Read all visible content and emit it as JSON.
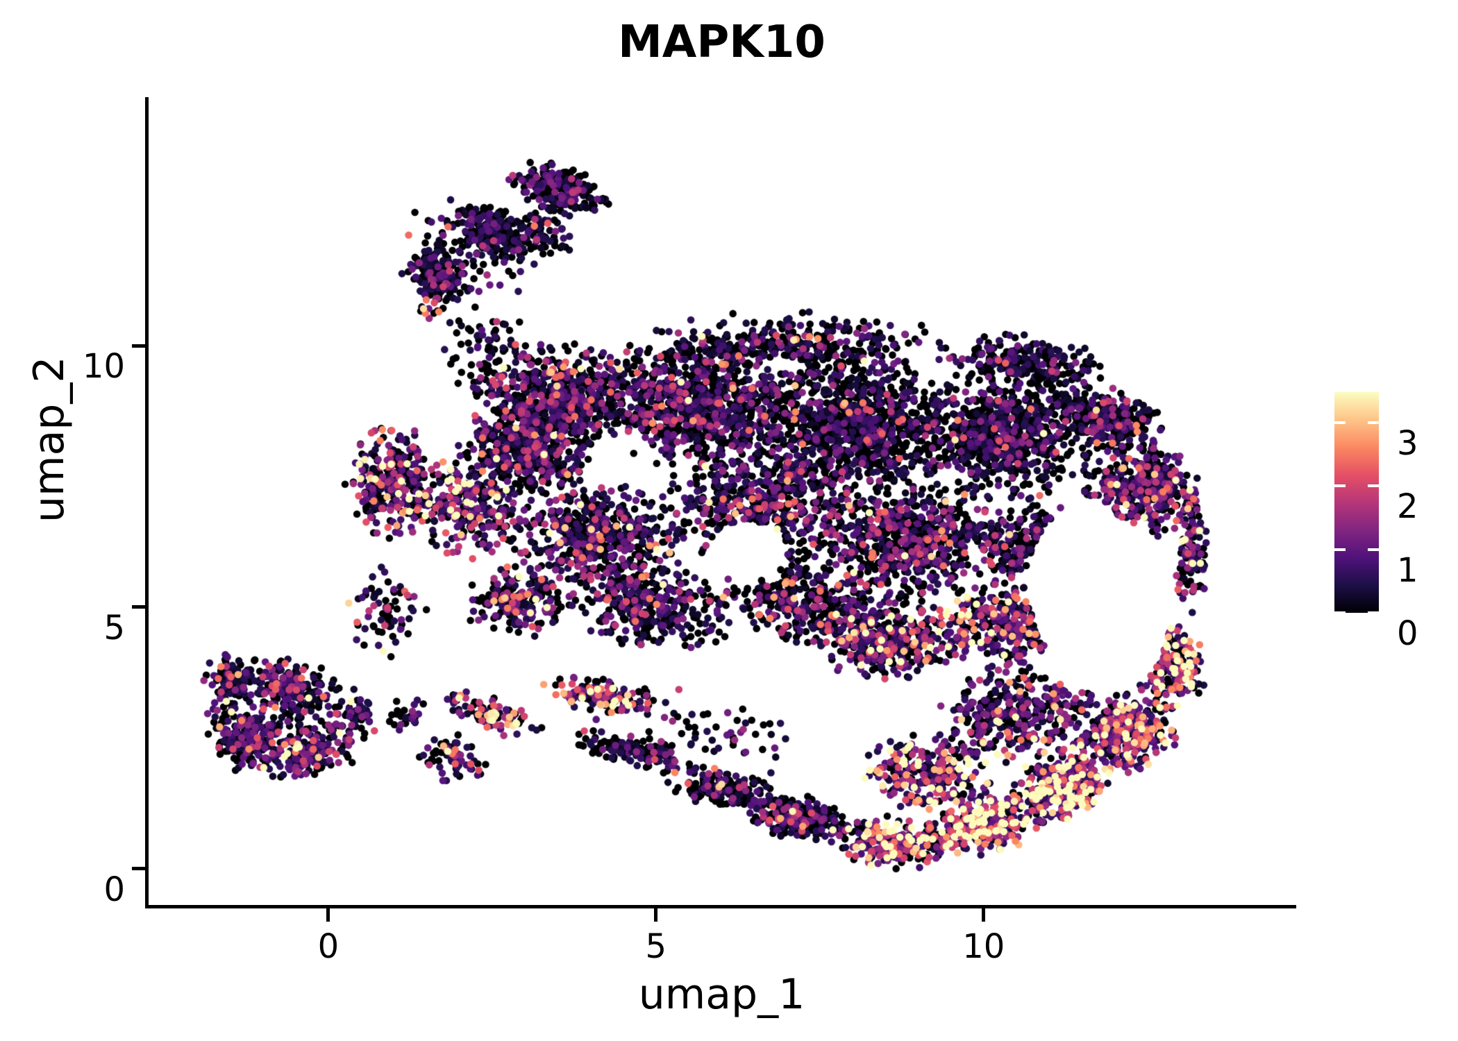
{
  "title": "MAPK10",
  "axes": {
    "x_label": "umap_1",
    "y_label": "umap_2",
    "x_ticks": [
      0,
      5,
      10
    ],
    "y_ticks": [
      0,
      5,
      10
    ]
  },
  "colorbar": {
    "ticks": [
      0,
      1,
      2,
      3
    ],
    "vmin": 0,
    "vmax": 3.48
  },
  "chart_data": {
    "type": "scatter",
    "title": "MAPK10",
    "xlabel": "umap_1",
    "ylabel": "umap_2",
    "x_range": [
      -2.764,
      14.77
    ],
    "y_range": [
      -0.72,
      14.75
    ],
    "point_radius_px": 5.3,
    "grid": false,
    "legend": "colorbar-right",
    "colormap": {
      "name": "magma",
      "stops": [
        [
          0.0,
          "#000004"
        ],
        [
          0.125,
          "#1c0f47"
        ],
        [
          0.25,
          "#50127b"
        ],
        [
          0.375,
          "#822581"
        ],
        [
          0.5,
          "#b63679"
        ],
        [
          0.625,
          "#e55064"
        ],
        [
          0.75,
          "#fb8861"
        ],
        [
          0.875,
          "#fec488"
        ],
        [
          1.0,
          "#fcfdbf"
        ]
      ]
    },
    "expression_profiles": {
      "low": [
        0.54,
        0.5
      ],
      "mid": [
        0.44,
        0.7
      ],
      "midhigh": [
        0.33,
        1.05
      ],
      "high": [
        0.25,
        1.45
      ],
      "vhigh": [
        0.17,
        1.85
      ]
    },
    "value_floor": 0.18,
    "seed": 20240613,
    "clusters": [
      [
        -1.3,
        2.5,
        0.55,
        0.7,
        0,
        150,
        "mid"
      ],
      [
        -0.6,
        3.5,
        0.8,
        0.55,
        -20,
        170,
        "mid"
      ],
      [
        -0.35,
        2.2,
        0.8,
        0.55,
        10,
        160,
        "midhigh"
      ],
      [
        -1.5,
        3.6,
        0.45,
        0.5,
        0,
        90,
        "mid"
      ],
      [
        -0.7,
        2.9,
        1.35,
        1.15,
        0,
        140,
        "mid"
      ],
      [
        0.35,
        2.9,
        0.45,
        0.55,
        0,
        60,
        "mid"
      ],
      [
        3.55,
        13.0,
        0.85,
        0.45,
        -22,
        260,
        "low"
      ],
      [
        2.55,
        12.15,
        0.75,
        0.5,
        -35,
        210,
        "low"
      ],
      [
        1.65,
        11.35,
        0.6,
        0.45,
        -35,
        170,
        "low"
      ],
      [
        1.55,
        10.78,
        0.22,
        0.28,
        0,
        16,
        "vhigh"
      ],
      [
        2.2,
        11.9,
        1.3,
        1.0,
        -35,
        80,
        "low"
      ],
      [
        3.3,
        12.15,
        0.5,
        0.6,
        0,
        60,
        "low"
      ],
      [
        2.4,
        9.9,
        0.9,
        0.85,
        60,
        70,
        "low"
      ],
      [
        3.5,
        9.0,
        1.4,
        1.05,
        0,
        600,
        "mid"
      ],
      [
        3.0,
        8.0,
        1.1,
        0.9,
        0,
        420,
        "mid"
      ],
      [
        5.6,
        8.9,
        1.8,
        1.25,
        0,
        800,
        "mid"
      ],
      [
        8.0,
        8.5,
        1.8,
        1.4,
        0,
        950,
        "low"
      ],
      [
        10.3,
        8.3,
        1.5,
        1.3,
        0,
        700,
        "low"
      ],
      [
        12.4,
        7.3,
        0.95,
        1.0,
        0,
        400,
        "mid"
      ],
      [
        2.1,
        6.9,
        0.9,
        1.0,
        0,
        260,
        "midhigh"
      ],
      [
        1.0,
        7.4,
        0.75,
        1.1,
        0,
        300,
        "midhigh"
      ],
      [
        4.1,
        6.3,
        1.5,
        1.15,
        0,
        520,
        "mid"
      ],
      [
        6.6,
        7.0,
        1.5,
        1.25,
        0,
        520,
        "mid"
      ],
      [
        8.8,
        6.3,
        1.6,
        1.25,
        0,
        650,
        "mid"
      ],
      [
        10.7,
        6.2,
        1.0,
        0.95,
        0,
        280,
        "mid"
      ],
      [
        5.0,
        5.0,
        1.3,
        0.85,
        -8,
        330,
        "mid"
      ],
      [
        7.2,
        5.1,
        1.3,
        0.9,
        -8,
        330,
        "mid"
      ],
      [
        8.6,
        4.4,
        1.3,
        0.8,
        0,
        380,
        "midhigh"
      ],
      [
        10.3,
        4.6,
        1.1,
        0.85,
        0,
        300,
        "midhigh"
      ],
      [
        7.0,
        10.0,
        2.6,
        0.65,
        0,
        330,
        "low"
      ],
      [
        10.6,
        9.7,
        1.3,
        0.55,
        -8,
        220,
        "low"
      ],
      [
        11.9,
        8.6,
        0.9,
        0.6,
        -25,
        240,
        "mid"
      ],
      [
        13.15,
        6.1,
        0.28,
        1.25,
        0,
        110,
        "midhigh"
      ],
      [
        2.9,
        5.1,
        0.85,
        0.7,
        0,
        200,
        "mid"
      ],
      [
        0.9,
        4.9,
        0.6,
        0.9,
        0,
        70,
        "mid"
      ],
      [
        2.5,
        2.95,
        0.9,
        0.32,
        -25,
        100,
        "high"
      ],
      [
        4.2,
        3.3,
        1.0,
        0.35,
        -12,
        130,
        "high"
      ],
      [
        4.7,
        2.2,
        1.05,
        0.35,
        -18,
        130,
        "low"
      ],
      [
        6.1,
        1.5,
        1.0,
        0.4,
        -15,
        170,
        "low"
      ],
      [
        7.2,
        0.95,
        0.85,
        0.45,
        -10,
        210,
        "mid"
      ],
      [
        8.6,
        0.5,
        1.0,
        0.5,
        -5,
        260,
        "high"
      ],
      [
        10.0,
        0.85,
        1.0,
        0.6,
        18,
        300,
        "vhigh"
      ],
      [
        11.2,
        1.6,
        0.9,
        0.7,
        35,
        320,
        "vhigh"
      ],
      [
        12.15,
        2.6,
        0.8,
        0.8,
        45,
        300,
        "high"
      ],
      [
        12.85,
        3.85,
        0.55,
        0.9,
        0,
        230,
        "high"
      ],
      [
        10.5,
        2.95,
        1.4,
        1.0,
        10,
        330,
        "midhigh"
      ],
      [
        9.2,
        1.85,
        1.1,
        0.8,
        0,
        260,
        "high"
      ],
      [
        5.8,
        2.6,
        1.8,
        0.8,
        -10,
        60,
        "low"
      ],
      [
        1.9,
        2.1,
        0.55,
        0.5,
        0,
        70,
        "mid"
      ],
      [
        1.2,
        2.9,
        0.4,
        0.4,
        0,
        30,
        "low"
      ]
    ],
    "holes": [
      [
        11.75,
        5.15,
        1.05,
        1.8,
        10
      ],
      [
        6.4,
        6.1,
        0.6,
        0.55,
        0
      ]
    ]
  }
}
